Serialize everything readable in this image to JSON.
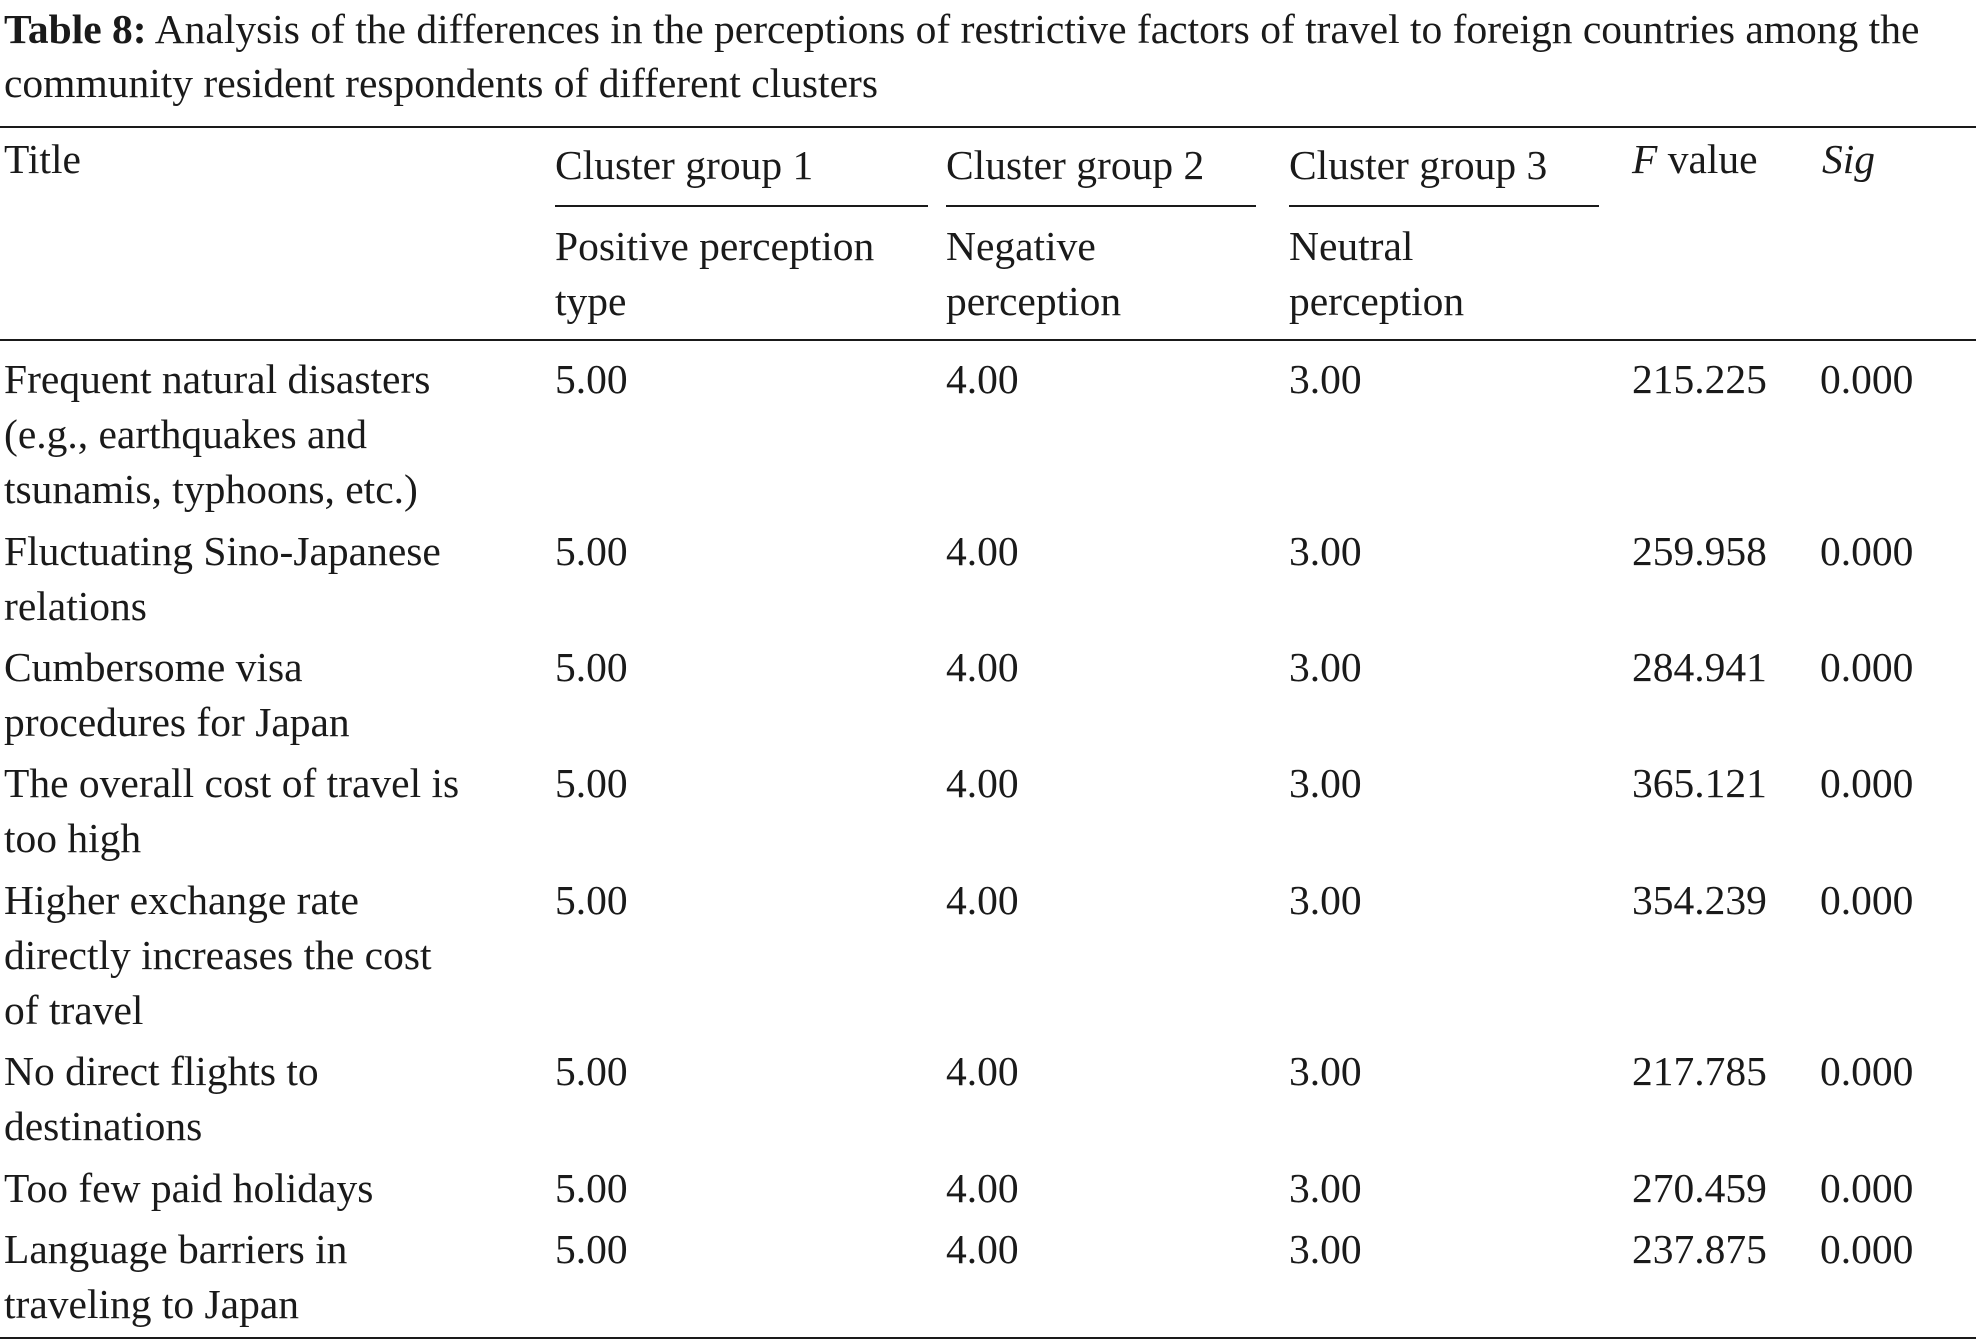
{
  "caption": {
    "label": "Table 8:",
    "text": "Analysis of the differences in the perceptions of restrictive factors of travel to foreign countries among the community resident respondents of different clusters"
  },
  "header": {
    "title": "Title",
    "cluster1_group": "Cluster group 1",
    "cluster2_group": "Cluster group 2",
    "cluster3_group": "Cluster group 3",
    "f_symbol": "F",
    "f_rest": " value",
    "sig": "Sig",
    "cluster1_type": [
      "Positive perception",
      "type"
    ],
    "cluster2_type": [
      "Negative",
      "perception"
    ],
    "cluster3_type": [
      "Neutral",
      "perception"
    ]
  },
  "rows": [
    {
      "title": [
        "Frequent natural disasters",
        "(e.g., earthquakes and",
        "tsunamis, typhoons, etc.)"
      ],
      "c1": "5.00",
      "c2": "4.00",
      "c3": "3.00",
      "f": "215.225",
      "sig": "0.000"
    },
    {
      "title": [
        "Fluctuating Sino-Japanese",
        "relations"
      ],
      "c1": "5.00",
      "c2": "4.00",
      "c3": "3.00",
      "f": "259.958",
      "sig": "0.000"
    },
    {
      "title": [
        "Cumbersome visa",
        "procedures for Japan"
      ],
      "c1": "5.00",
      "c2": "4.00",
      "c3": "3.00",
      "f": "284.941",
      "sig": "0.000"
    },
    {
      "title": [
        "The overall cost of travel is",
        "too high"
      ],
      "c1": "5.00",
      "c2": "4.00",
      "c3": "3.00",
      "f": "365.121",
      "sig": "0.000"
    },
    {
      "title": [
        "Higher exchange rate",
        "directly increases the cost",
        "of travel"
      ],
      "c1": "5.00",
      "c2": "4.00",
      "c3": "3.00",
      "f": "354.239",
      "sig": "0.000"
    },
    {
      "title": [
        "No direct flights to",
        "destinations"
      ],
      "c1": "5.00",
      "c2": "4.00",
      "c3": "3.00",
      "f": "217.785",
      "sig": "0.000"
    },
    {
      "title": [
        "Too few paid holidays"
      ],
      "c1": "5.00",
      "c2": "4.00",
      "c3": "3.00",
      "f": "270.459",
      "sig": "0.000"
    },
    {
      "title": [
        "Language barriers in",
        "traveling to Japan"
      ],
      "c1": "5.00",
      "c2": "4.00",
      "c3": "3.00",
      "f": "237.875",
      "sig": "0.000"
    }
  ]
}
